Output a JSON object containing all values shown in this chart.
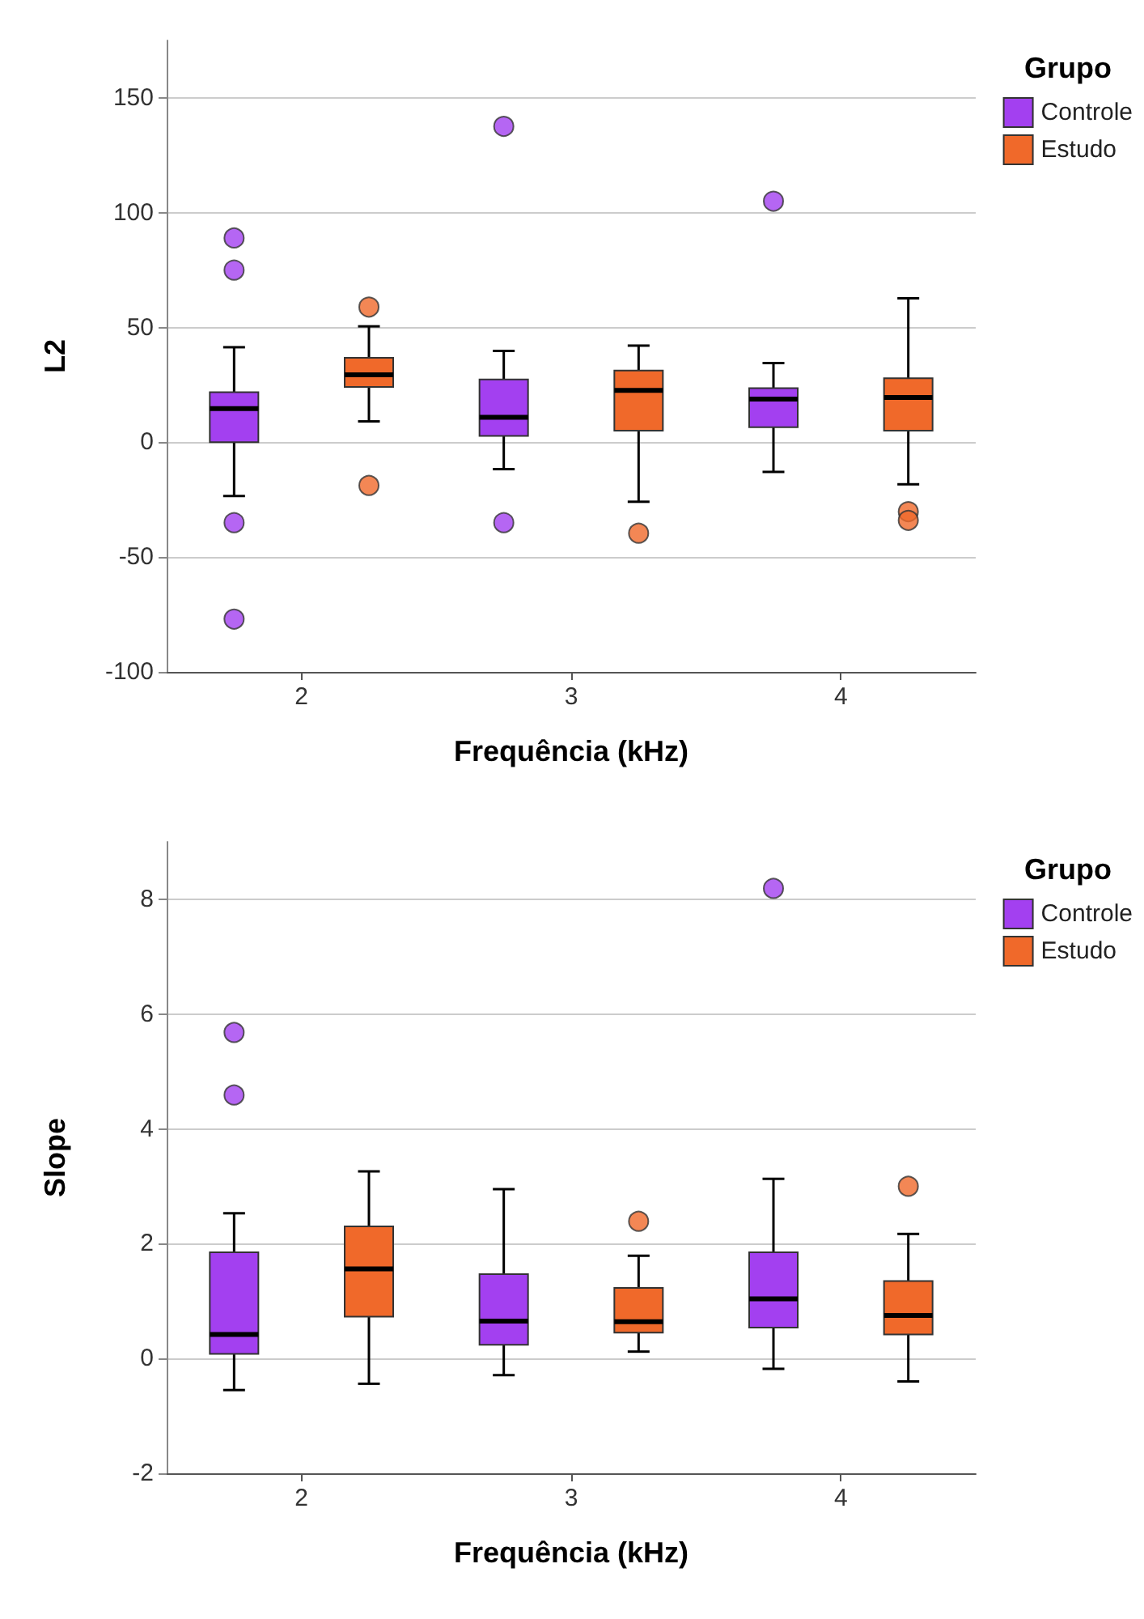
{
  "chart_data": [
    {
      "type": "box",
      "xlabel": "Frequência (kHz)",
      "ylabel": "L2",
      "legend_title": "Grupo",
      "legend": "top right",
      "grid": "y",
      "categories": [
        "2",
        "3",
        "4"
      ],
      "ylim": [
        -100,
        175
      ],
      "yticks": [
        -100,
        -50,
        0,
        50,
        100,
        150
      ],
      "series": [
        {
          "name": "Controle",
          "color": "#a340f0",
          "boxes": [
            {
              "low": -23.4,
              "q1": 0,
              "median": 14.7,
              "q3": 21.8,
              "high": 41.4,
              "outliers": [
                75,
                89,
                -35,
                -77
              ]
            },
            {
              "low": -11.7,
              "q1": 2.8,
              "median": 10.9,
              "q3": 27.4,
              "high": 39.8,
              "outliers": [
                137.6,
                -35
              ]
            },
            {
              "low": -12.9,
              "q1": 6.6,
              "median": 18.8,
              "q3": 23.6,
              "high": 34.5,
              "outliers": [
                105
              ]
            }
          ]
        },
        {
          "name": "Estudo",
          "color": "#f0692a",
          "boxes": [
            {
              "low": 9.1,
              "q1": 24.1,
              "median": 29.4,
              "q3": 36.8,
              "high": 50.5,
              "outliers": [
                58.9,
                -18.8
              ]
            },
            {
              "low": -25.9,
              "q1": 5.1,
              "median": 22.6,
              "q3": 31.2,
              "high": 42.1,
              "outliers": [
                -39.6
              ]
            },
            {
              "low": -18.3,
              "q1": 5.1,
              "median": 19.5,
              "q3": 27.9,
              "high": 62.7,
              "outliers": [
                -30.2,
                -34
              ]
            }
          ]
        }
      ]
    },
    {
      "type": "box",
      "xlabel": "Frequência (kHz)",
      "ylabel": "Slope",
      "legend_title": "Grupo",
      "legend": "top right",
      "grid": "y",
      "categories": [
        "2",
        "3",
        "4"
      ],
      "ylim": [
        -2,
        9
      ],
      "yticks": [
        -2,
        0,
        2,
        4,
        6,
        8
      ],
      "series": [
        {
          "name": "Controle",
          "color": "#a340f0",
          "boxes": [
            {
              "low": -0.55,
              "q1": 0.08,
              "median": 0.42,
              "q3": 1.85,
              "high": 2.53,
              "outliers": [
                5.68,
                4.59
              ]
            },
            {
              "low": -0.29,
              "q1": 0.24,
              "median": 0.65,
              "q3": 1.47,
              "high": 2.95
            },
            {
              "low": -0.18,
              "q1": 0.54,
              "median": 1.04,
              "q3": 1.85,
              "high": 3.13,
              "outliers": [
                8.19
              ]
            }
          ]
        },
        {
          "name": "Estudo",
          "color": "#f0692a",
          "boxes": [
            {
              "low": -0.44,
              "q1": 0.73,
              "median": 1.56,
              "q3": 2.3,
              "high": 3.26
            },
            {
              "low": 0.12,
              "q1": 0.45,
              "median": 0.64,
              "q3": 1.23,
              "high": 1.79,
              "outliers": [
                2.39
              ]
            },
            {
              "low": -0.4,
              "q1": 0.42,
              "median": 0.75,
              "q3": 1.35,
              "high": 2.17,
              "outliers": [
                3
              ]
            }
          ]
        }
      ]
    }
  ]
}
